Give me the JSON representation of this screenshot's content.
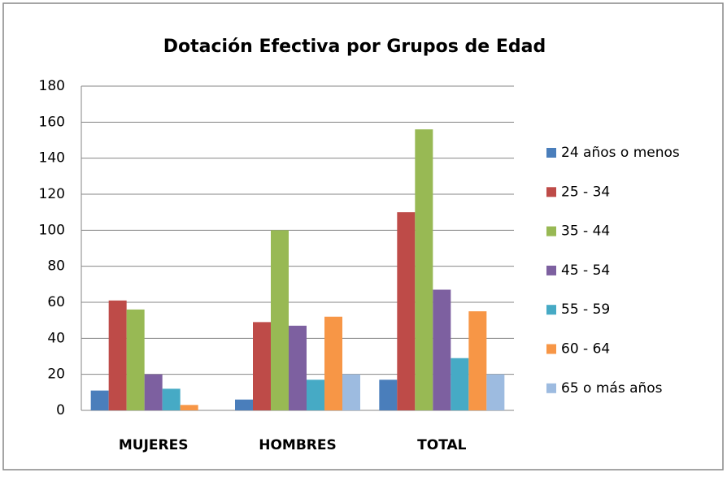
{
  "chart_data": {
    "type": "bar",
    "title": "Dotación Efectiva por Grupos de Edad",
    "categories": [
      "MUJERES",
      "HOMBRES",
      "TOTAL"
    ],
    "series": [
      {
        "name": "24 años o menos",
        "color": "#4a7ebb",
        "values": [
          11,
          6,
          17
        ]
      },
      {
        "name": "25 - 34",
        "color": "#be4b48",
        "values": [
          61,
          49,
          110
        ]
      },
      {
        "name": "35 - 44",
        "color": "#98b954",
        "values": [
          56,
          100,
          156
        ]
      },
      {
        "name": "45 - 54",
        "color": "#7d60a0",
        "values": [
          20,
          47,
          67
        ]
      },
      {
        "name": "55 - 59",
        "color": "#46aac5",
        "values": [
          12,
          17,
          29
        ]
      },
      {
        "name": "60 - 64",
        "color": "#f79646",
        "values": [
          3,
          52,
          55
        ]
      },
      {
        "name": "65 o más años",
        "color": "#9dbbe0",
        "values": [
          0,
          20,
          20
        ]
      }
    ],
    "ylim": [
      0,
      180
    ],
    "yticks": [
      0,
      20,
      40,
      60,
      80,
      100,
      120,
      140,
      160,
      180
    ],
    "grid": true,
    "legend": "right"
  }
}
